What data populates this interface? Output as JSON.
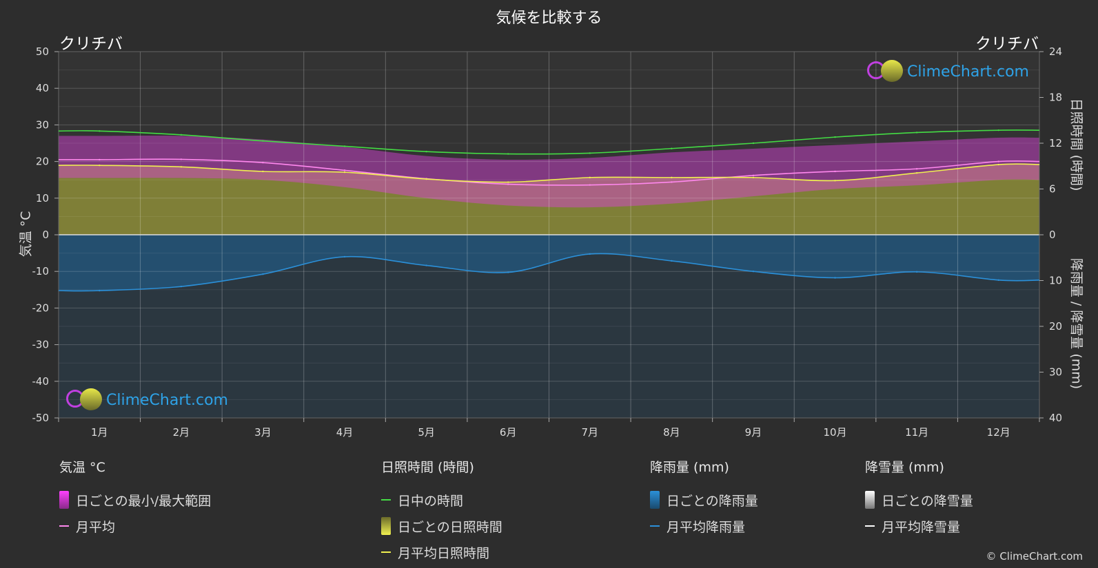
{
  "header": {
    "title": "気候を比較する",
    "city_left": "クリチバ",
    "city_right": "クリチバ"
  },
  "axes": {
    "left_title": "気温 °C",
    "right_top_title": "日照時間 (時間)",
    "right_bottom_title": "降雨量 / 降雪量 (mm)"
  },
  "legend": {
    "temperature": {
      "heading": "気温 °C",
      "range_label": "日ごとの最小/最大範囲",
      "avg_label": "月平均"
    },
    "sunshine": {
      "heading": "日照時間 (時間)",
      "daylight_label": "日中の時間",
      "daily_label": "日ごとの日照時間",
      "avg_label": "月平均日照時間"
    },
    "rain": {
      "heading": "降雨量 (mm)",
      "daily_label": "日ごとの降雨量",
      "avg_label": "月平均降雨量"
    },
    "snow": {
      "heading": "降雪量 (mm)",
      "daily_label": "日ごとの降雪量",
      "avg_label": "月平均降雪量"
    }
  },
  "logo_text": "ClimeChart.com",
  "copyright": "© ClimeChart.com",
  "colors": {
    "background": "#2d2d2d",
    "daylight": "#44dd44",
    "sunshine_avg": "#f0f050",
    "sunshine_fill": "#9a9a3a",
    "temp_avg": "#ff88ee",
    "temp_range": "#e040e0",
    "rain": "#2b90d9",
    "snow": "#ffffff"
  },
  "chart_data": {
    "type": "line",
    "categories": [
      "1月",
      "2月",
      "3月",
      "4月",
      "5月",
      "6月",
      "7月",
      "8月",
      "9月",
      "10月",
      "11月",
      "12月"
    ],
    "y_left": {
      "min": -50,
      "max": 50,
      "ticks": [
        50,
        40,
        30,
        20,
        10,
        0,
        -10,
        -20,
        -30,
        -40,
        -50
      ]
    },
    "y_right_sun": {
      "min": 0,
      "max": 24,
      "ticks": [
        24,
        18,
        12,
        6,
        0
      ]
    },
    "y_right_precip": {
      "min": 0,
      "max": 40,
      "ticks": [
        10,
        20,
        30,
        40
      ]
    },
    "series": [
      {
        "name": "日中の時間",
        "values": [
          13.6,
          13.1,
          12.3,
          11.6,
          10.9,
          10.6,
          10.7,
          11.3,
          12.0,
          12.8,
          13.4,
          13.7
        ]
      },
      {
        "name": "月平均日照時間",
        "values": [
          9.1,
          8.9,
          8.3,
          8.2,
          7.3,
          6.9,
          7.5,
          7.5,
          7.5,
          7.1,
          8.1,
          9.2
        ]
      },
      {
        "name": "月平均",
        "values": [
          20.5,
          20.6,
          19.7,
          17.6,
          15.3,
          13.8,
          13.6,
          14.4,
          16.2,
          17.3,
          18.0,
          20.0
        ]
      },
      {
        "name": "月平均降雨量",
        "values": [
          12.2,
          11.3,
          8.6,
          4.8,
          6.7,
          8.2,
          4.2,
          5.7,
          8.0,
          9.4,
          8.1,
          9.9
        ]
      },
      {
        "name": "月平均降雪量",
        "values": [
          0,
          0,
          0,
          0,
          0,
          0,
          0,
          0,
          0,
          0,
          0,
          0
        ]
      }
    ],
    "daily_temp_range": {
      "min": [
        15.5,
        15.5,
        15,
        13,
        10,
        8,
        7.5,
        8.5,
        10.5,
        12.5,
        13.5,
        15
      ],
      "max": [
        27,
        27,
        26,
        24,
        21.5,
        20.5,
        21,
        22.5,
        23.5,
        24.5,
        25.5,
        26.5
      ]
    },
    "grid": true
  }
}
